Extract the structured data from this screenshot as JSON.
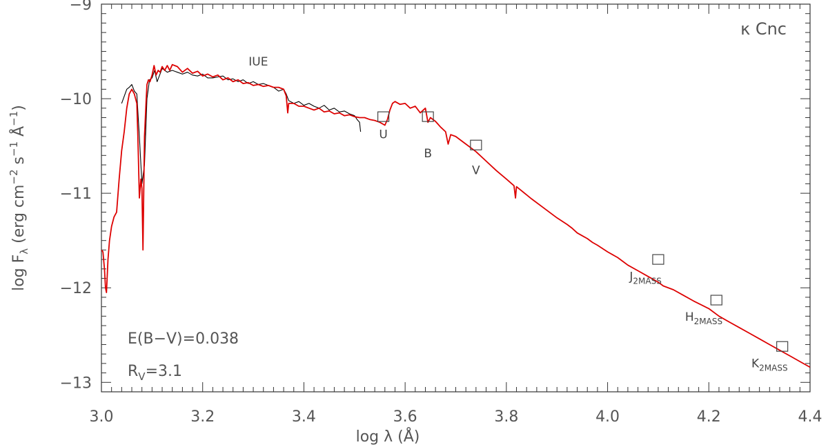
{
  "chart_data": {
    "type": "line",
    "title": "",
    "object_label": "κ Cnc",
    "xlabel": "log λ (Å)",
    "ylabel": {
      "prefix": "log F",
      "sub": "λ",
      "units_open": " (erg cm",
      "exp1": "−2",
      "mid1": " s",
      "exp2": "−1",
      "mid2": " Å",
      "exp3": "−1",
      "close": ")"
    },
    "xlim": [
      3.0,
      4.4
    ],
    "ylim": [
      -13.1,
      -9.0
    ],
    "xticks": [
      {
        "v": 3.0,
        "label": "3.0"
      },
      {
        "v": 3.2,
        "label": "3.2"
      },
      {
        "v": 3.4,
        "label": "3.4"
      },
      {
        "v": 3.6,
        "label": "3.6"
      },
      {
        "v": 3.8,
        "label": "3.8"
      },
      {
        "v": 4.0,
        "label": "4.0"
      },
      {
        "v": 4.2,
        "label": "4.2"
      },
      {
        "v": 4.4,
        "label": "4.4"
      }
    ],
    "yticks": [
      {
        "v": -9,
        "label": "−9"
      },
      {
        "v": -10,
        "label": "−10"
      },
      {
        "v": -11,
        "label": "−11"
      },
      {
        "v": -12,
        "label": "−12"
      },
      {
        "v": -13,
        "label": "−13"
      }
    ],
    "series": [
      {
        "id": "observed",
        "color": "#000000",
        "x": [
          3.04,
          3.05,
          3.055,
          3.06,
          3.065,
          3.07,
          3.075,
          3.08,
          3.085,
          3.09,
          3.095,
          3.1,
          3.105,
          3.11,
          3.115,
          3.12,
          3.13,
          3.14,
          3.15,
          3.16,
          3.17,
          3.18,
          3.19,
          3.2,
          3.21,
          3.22,
          3.23,
          3.24,
          3.25,
          3.26,
          3.27,
          3.28,
          3.29,
          3.3,
          3.31,
          3.32,
          3.33,
          3.34,
          3.35,
          3.36,
          3.365,
          3.37,
          3.38,
          3.39,
          3.4,
          3.41,
          3.42,
          3.43,
          3.44,
          3.45,
          3.46,
          3.47,
          3.48,
          3.49,
          3.5,
          3.505,
          3.51,
          3.512
        ],
        "y": [
          -10.05,
          -9.9,
          -9.88,
          -9.85,
          -9.92,
          -9.95,
          -10.4,
          -10.9,
          -10.7,
          -10.0,
          -9.8,
          -9.78,
          -9.7,
          -9.82,
          -9.75,
          -9.68,
          -9.72,
          -9.7,
          -9.72,
          -9.74,
          -9.72,
          -9.75,
          -9.76,
          -9.74,
          -9.78,
          -9.78,
          -9.77,
          -9.76,
          -9.8,
          -9.79,
          -9.82,
          -9.8,
          -9.84,
          -9.82,
          -9.85,
          -9.84,
          -9.86,
          -9.88,
          -9.92,
          -9.9,
          -9.95,
          -10.02,
          -10.05,
          -10.03,
          -10.07,
          -10.05,
          -10.08,
          -10.1,
          -10.07,
          -10.12,
          -10.1,
          -10.14,
          -10.13,
          -10.16,
          -10.18,
          -10.22,
          -10.25,
          -10.35
        ]
      },
      {
        "id": "model",
        "color": "#dd0000",
        "x": [
          3.0,
          3.003,
          3.006,
          3.008,
          3.01,
          3.013,
          3.016,
          3.02,
          3.025,
          3.03,
          3.035,
          3.04,
          3.045,
          3.05,
          3.055,
          3.06,
          3.065,
          3.07,
          3.072,
          3.075,
          3.078,
          3.08,
          3.082,
          3.085,
          3.088,
          3.09,
          3.093,
          3.096,
          3.1,
          3.104,
          3.108,
          3.112,
          3.116,
          3.12,
          3.125,
          3.13,
          3.135,
          3.14,
          3.15,
          3.16,
          3.17,
          3.18,
          3.19,
          3.2,
          3.21,
          3.22,
          3.23,
          3.24,
          3.25,
          3.26,
          3.27,
          3.28,
          3.29,
          3.3,
          3.31,
          3.32,
          3.33,
          3.34,
          3.35,
          3.36,
          3.365,
          3.368,
          3.37,
          3.38,
          3.39,
          3.4,
          3.41,
          3.42,
          3.43,
          3.44,
          3.45,
          3.46,
          3.47,
          3.48,
          3.49,
          3.5,
          3.51,
          3.52,
          3.53,
          3.54,
          3.55,
          3.56,
          3.565,
          3.57,
          3.575,
          3.58,
          3.59,
          3.6,
          3.61,
          3.62,
          3.63,
          3.64,
          3.645,
          3.65,
          3.66,
          3.67,
          3.68,
          3.685,
          3.69,
          3.7,
          3.72,
          3.74,
          3.76,
          3.78,
          3.8,
          3.815,
          3.818,
          3.82,
          3.85,
          3.88,
          3.9,
          3.92,
          3.93,
          3.94,
          3.95,
          3.96,
          3.97,
          3.98,
          4.0,
          4.02,
          4.04,
          4.06,
          4.08,
          4.1,
          4.11,
          4.13,
          4.15,
          4.17,
          4.2,
          4.22,
          4.24,
          4.26,
          4.28,
          4.3,
          4.32,
          4.34,
          4.36,
          4.38,
          4.4
        ],
        "y": [
          -11.6,
          -11.62,
          -11.8,
          -12.0,
          -12.05,
          -11.7,
          -11.5,
          -11.35,
          -11.25,
          -11.2,
          -10.85,
          -10.55,
          -10.35,
          -10.1,
          -9.95,
          -9.9,
          -9.95,
          -10.05,
          -10.4,
          -11.05,
          -10.85,
          -10.95,
          -11.6,
          -10.4,
          -10.05,
          -9.85,
          -9.8,
          -9.82,
          -9.75,
          -9.65,
          -9.75,
          -9.7,
          -9.72,
          -9.66,
          -9.7,
          -9.65,
          -9.7,
          -9.64,
          -9.66,
          -9.72,
          -9.68,
          -9.73,
          -9.71,
          -9.76,
          -9.74,
          -9.77,
          -9.75,
          -9.8,
          -9.78,
          -9.82,
          -9.8,
          -9.84,
          -9.83,
          -9.86,
          -9.85,
          -9.87,
          -9.86,
          -9.88,
          -9.88,
          -9.9,
          -9.97,
          -10.15,
          -10.05,
          -10.05,
          -10.08,
          -10.08,
          -10.1,
          -10.12,
          -10.1,
          -10.14,
          -10.13,
          -10.16,
          -10.15,
          -10.18,
          -10.17,
          -10.19,
          -10.2,
          -10.2,
          -10.22,
          -10.23,
          -10.25,
          -10.28,
          -10.22,
          -10.12,
          -10.05,
          -10.03,
          -10.06,
          -10.05,
          -10.1,
          -10.08,
          -10.15,
          -10.1,
          -10.25,
          -10.2,
          -10.24,
          -10.3,
          -10.35,
          -10.48,
          -10.38,
          -10.4,
          -10.48,
          -10.56,
          -10.66,
          -10.76,
          -10.85,
          -10.92,
          -11.05,
          -10.93,
          -11.06,
          -11.18,
          -11.26,
          -11.33,
          -11.37,
          -11.42,
          -11.45,
          -11.48,
          -11.52,
          -11.55,
          -11.62,
          -11.68,
          -11.76,
          -11.82,
          -11.88,
          -11.94,
          -11.98,
          -12.02,
          -12.08,
          -12.14,
          -12.22,
          -12.3,
          -12.36,
          -12.42,
          -12.48,
          -12.54,
          -12.6,
          -12.66,
          -12.72,
          -12.78,
          -12.84
        ]
      }
    ],
    "photometry": [
      {
        "x": 3.557,
        "y": -10.19,
        "label": "U",
        "sub": "",
        "lx": 3.557,
        "ly": -10.42
      },
      {
        "x": 3.645,
        "y": -10.19,
        "label": "B",
        "sub": "",
        "lx": 3.645,
        "ly": -10.62
      },
      {
        "x": 3.74,
        "y": -10.49,
        "label": "V",
        "sub": "",
        "lx": 3.74,
        "ly": -10.8
      },
      {
        "x": 4.1,
        "y": -11.7,
        "label": "J",
        "sub": "2MASS",
        "lx": 4.075,
        "ly": -11.92
      },
      {
        "x": 4.215,
        "y": -12.13,
        "label": "H",
        "sub": "2MASS",
        "lx": 4.19,
        "ly": -12.35
      },
      {
        "x": 4.345,
        "y": -12.62,
        "label": "K",
        "sub": "2MASS",
        "lx": 4.32,
        "ly": -12.84
      }
    ],
    "annotations": {
      "iue": {
        "text": "IUE",
        "x": 3.31,
        "y": -9.65
      },
      "ebv": {
        "text": "E(B−V)=0.038"
      },
      "rv": {
        "prefix": "R",
        "sub": "V",
        "rest": "=3.1"
      }
    },
    "grid": false,
    "legend": "none"
  }
}
